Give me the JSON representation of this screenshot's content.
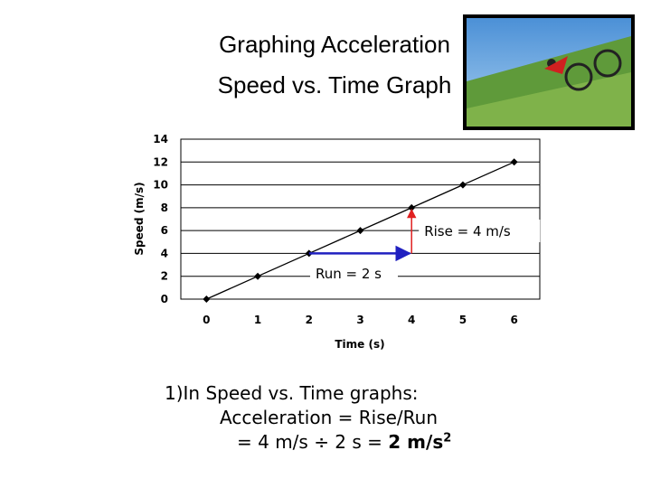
{
  "title": [
    "Graphing Acceleration",
    "Speed vs. Time Graph"
  ],
  "chart_data": {
    "type": "line",
    "x": [
      0,
      1,
      2,
      3,
      4,
      5,
      6
    ],
    "values": [
      0,
      2,
      4,
      6,
      8,
      10,
      12
    ],
    "color": "#000000",
    "x_label": "Time (s)",
    "y_label": "Speed (m/s)",
    "xlim": [
      -0.5,
      6.5
    ],
    "xticks": [
      0,
      1,
      2,
      3,
      4,
      5,
      6
    ],
    "ylim": [
      0,
      14
    ],
    "yticks": [
      0,
      2,
      4,
      6,
      8,
      10,
      12,
      14
    ],
    "grid": true,
    "annotations": [
      {
        "text": "Rise = 4 m/s",
        "x": 4,
        "y": [
          4,
          8
        ],
        "color": "#e02020"
      },
      {
        "text": "Run = 2 s",
        "x": [
          2,
          4
        ],
        "y": 4,
        "color": "#2020c0"
      }
    ]
  },
  "body": {
    "lines": [
      "1)In Speed vs. Time graphs:",
      "Acceleration = Rise/Run",
      "= 4 m/s ÷ 2 s ="
    ],
    "answer": "2 m/s",
    "exponent": "2"
  }
}
